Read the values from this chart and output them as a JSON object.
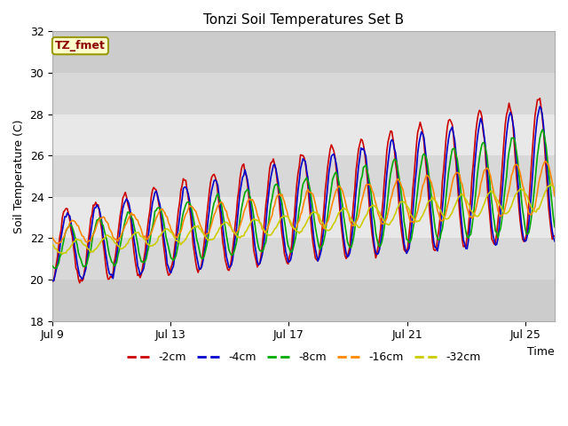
{
  "title": "Tonzi Soil Temperatures Set B",
  "xlabel": "Time",
  "ylabel": "Soil Temperature (C)",
  "ylim": [
    18,
    32
  ],
  "xlim": [
    0,
    17
  ],
  "xtick_positions": [
    0,
    4,
    8,
    12,
    16
  ],
  "xtick_labels": [
    "Jul 9",
    "Jul 13",
    "Jul 17",
    "Jul 21",
    "Jul 25"
  ],
  "ytick_vals": [
    18,
    20,
    22,
    24,
    26,
    28,
    30,
    32
  ],
  "annotation_label": "TZ_fmet",
  "annotation_color": "#8B0000",
  "annotation_bg": "#FFFFCC",
  "annotation_edge": "#999900",
  "fig_bg": "#FFFFFF",
  "plot_bg_dark": "#CCCCCC",
  "plot_bg_light": "#E0E0E0",
  "series": [
    {
      "label": "-2cm",
      "color": "#CC0000",
      "lw": 1.2
    },
    {
      "label": "-4cm",
      "color": "#0000CC",
      "lw": 1.2
    },
    {
      "label": "-8cm",
      "color": "#00AA00",
      "lw": 1.2
    },
    {
      "label": "-16cm",
      "color": "#FF8800",
      "lw": 1.2
    },
    {
      "label": "-32cm",
      "color": "#CCCC00",
      "lw": 1.2
    }
  ]
}
